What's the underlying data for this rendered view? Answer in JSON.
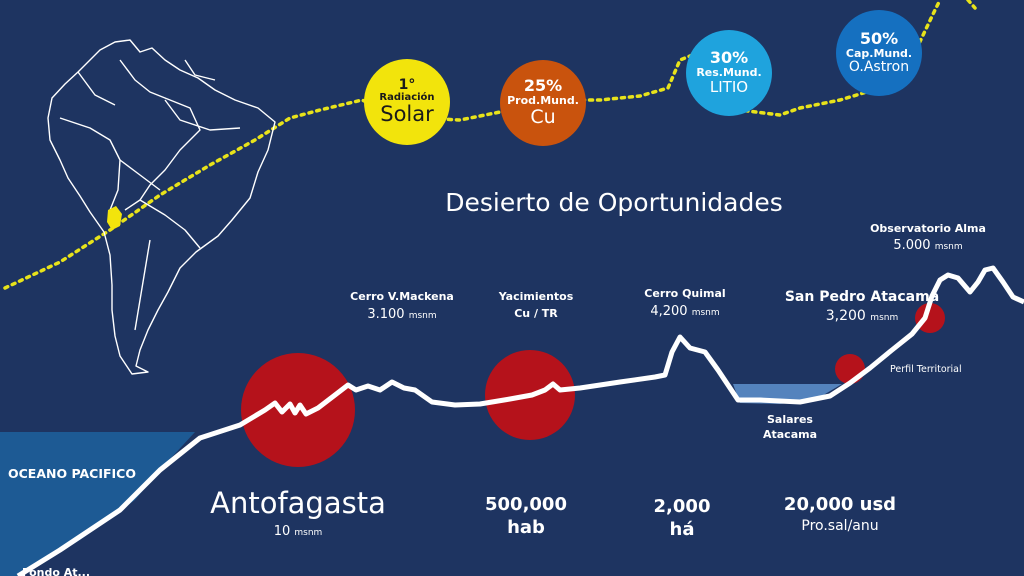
{
  "title": "Desierto de Oportunidades",
  "colors": {
    "background": "#1e3461",
    "ocean": "#1d5a94",
    "terrain": "#ffffff",
    "marker": "#b5121b",
    "route": "#e8e31a",
    "solar": "#f2e40c",
    "copper": "#c9530d",
    "lithium": "#1fa3dd",
    "astron": "#1570c0",
    "salar": "#5a8cc8"
  },
  "badges": [
    {
      "pct": "1°",
      "sub": "Radiación",
      "big": "Solar"
    },
    {
      "pct": "25%",
      "sub": "Prod.Mund.",
      "big": "Cu"
    },
    {
      "pct": "30%",
      "sub": "Res.Mund.",
      "big": "LITIO"
    },
    {
      "pct": "50%",
      "sub": "Cap.Mund.",
      "big": "O.Astron"
    }
  ],
  "places": {
    "ocean": "OCEANO PACIFICO",
    "antofagasta": {
      "name": "Antofagasta",
      "elev": "10",
      "unit": "msnm"
    },
    "mackena": {
      "name": "Cerro V.Mackena",
      "elev": "3.100",
      "unit": "msnm"
    },
    "yacimientos": {
      "line1": "Yacimientos",
      "line2": "Cu / TR"
    },
    "quimal": {
      "name": "Cerro Quimal",
      "elev": "4,200",
      "unit": "msnm"
    },
    "sanpedro": {
      "name": "San Pedro Atacama",
      "elev": "3,200",
      "unit": "msnm"
    },
    "alma": {
      "name": "Observatorio Alma",
      "elev": "5.000",
      "unit": "msnm"
    },
    "salares": {
      "line1": "Salares",
      "line2": "Atacama"
    },
    "perfil": "Perfil Territorial",
    "fondo": "Fondo At..."
  },
  "stats": [
    {
      "value": "500,000",
      "label": "hab"
    },
    {
      "value": "2,000",
      "label": "há"
    },
    {
      "value": "20,000 usd",
      "label": "Pro.sal/anu"
    }
  ]
}
